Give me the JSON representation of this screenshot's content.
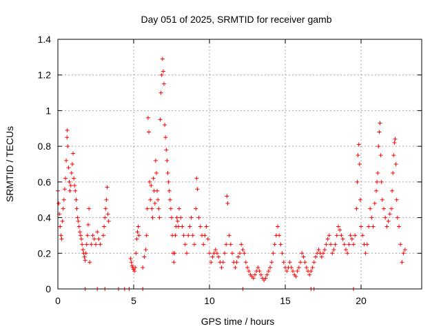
{
  "chart_data": {
    "type": "scatter",
    "title": "Day 051 of 2025, SRMTID for receiver gamb",
    "xlabel": "GPS time / hours",
    "ylabel": "SRMTID / TECUs",
    "xlim": [
      0,
      24
    ],
    "ylim": [
      0,
      1.4
    ],
    "xticks": [
      0,
      5,
      10,
      15,
      20
    ],
    "yticks": [
      0,
      0.2,
      0.4,
      0.6,
      0.8,
      1,
      1.2,
      1.4
    ],
    "xtick_labels": [
      "0",
      "5",
      "10",
      "15",
      "20"
    ],
    "ytick_labels": [
      "0",
      "0.2",
      "0.4",
      "0.6",
      "0.8",
      "1",
      "1.2",
      "1.4"
    ],
    "grid": true,
    "marker": "plus",
    "series": [
      {
        "name": "SRMTID",
        "color": "#ff0000",
        "points": [
          [
            0.0,
            0.55
          ],
          [
            0.05,
            0.48
          ],
          [
            0.1,
            0.42
          ],
          [
            0.15,
            0.35
          ],
          [
            0.2,
            0.3
          ],
          [
            0.25,
            0.28
          ],
          [
            0.3,
            0.38
          ],
          [
            0.35,
            0.45
          ],
          [
            0.4,
            0.5
          ],
          [
            0.45,
            0.56
          ],
          [
            0.5,
            0.62
          ],
          [
            0.55,
            0.72
          ],
          [
            0.6,
            0.85
          ],
          [
            0.62,
            0.89
          ],
          [
            0.65,
            0.8
          ],
          [
            0.7,
            0.68
          ],
          [
            0.75,
            0.6
          ],
          [
            0.8,
            0.55
          ],
          [
            0.85,
            0.58
          ],
          [
            0.9,
            0.65
          ],
          [
            0.95,
            0.7
          ],
          [
            1.0,
            0.76
          ],
          [
            1.05,
            0.62
          ],
          [
            1.1,
            0.58
          ],
          [
            1.15,
            0.55
          ],
          [
            1.2,
            0.5
          ],
          [
            1.25,
            0.45
          ],
          [
            1.3,
            0.4
          ],
          [
            1.35,
            0.38
          ],
          [
            1.4,
            0.35
          ],
          [
            1.45,
            0.32
          ],
          [
            1.5,
            0.3
          ],
          [
            1.55,
            0.28
          ],
          [
            1.6,
            0.25
          ],
          [
            1.65,
            0.22
          ],
          [
            1.7,
            0.2
          ],
          [
            1.75,
            0.18
          ],
          [
            1.8,
            0.16
          ],
          [
            1.85,
            0.2
          ],
          [
            1.9,
            0.25
          ],
          [
            1.95,
            0.3
          ],
          [
            2.0,
            0.36
          ],
          [
            2.05,
            0.45
          ],
          [
            2.1,
            0.15
          ],
          [
            2.2,
            0.25
          ],
          [
            2.3,
            0.3
          ],
          [
            2.4,
            0.28
          ],
          [
            2.5,
            0.25
          ],
          [
            2.6,
            0.32
          ],
          [
            2.7,
            0.28
          ],
          [
            2.8,
            0.25
          ],
          [
            3.0,
            0.3
          ],
          [
            3.05,
            0.35
          ],
          [
            3.1,
            0.4
          ],
          [
            3.15,
            0.45
          ],
          [
            3.2,
            0.5
          ],
          [
            3.25,
            0.57
          ],
          [
            3.3,
            0.42
          ],
          [
            3.35,
            0.38
          ],
          [
            4.8,
            0.17
          ],
          [
            4.85,
            0.15
          ],
          [
            4.9,
            0.13
          ],
          [
            4.95,
            0.12
          ],
          [
            5.0,
            0.11
          ],
          [
            5.05,
            0.1
          ],
          [
            5.1,
            0.12
          ],
          [
            5.15,
            0.2
          ],
          [
            5.2,
            0.28
          ],
          [
            5.25,
            0.32
          ],
          [
            5.3,
            0.35
          ],
          [
            5.35,
            0.3
          ],
          [
            5.6,
            0.12
          ],
          [
            5.7,
            0.18
          ],
          [
            5.8,
            0.22
          ],
          [
            5.85,
            0.3
          ],
          [
            5.9,
            0.45
          ],
          [
            5.95,
            0.96
          ],
          [
            6.0,
            0.88
          ],
          [
            6.05,
            0.6
          ],
          [
            6.1,
            0.5
          ],
          [
            6.15,
            0.58
          ],
          [
            6.2,
            0.45
          ],
          [
            6.25,
            0.4
          ],
          [
            6.3,
            0.62
          ],
          [
            6.35,
            0.55
          ],
          [
            6.4,
            0.48
          ],
          [
            6.45,
            0.72
          ],
          [
            6.5,
            0.65
          ],
          [
            6.55,
            0.55
          ],
          [
            6.6,
            0.5
          ],
          [
            6.65,
            0.45
          ],
          [
            6.7,
            0.4
          ],
          [
            6.75,
            0.95
          ],
          [
            6.8,
            1.1
          ],
          [
            6.85,
            1.2
          ],
          [
            6.9,
            1.29
          ],
          [
            6.95,
            1.22
          ],
          [
            7.0,
            1.15
          ],
          [
            7.05,
            0.92
          ],
          [
            7.1,
            0.85
          ],
          [
            7.15,
            0.78
          ],
          [
            7.2,
            0.72
          ],
          [
            7.25,
            0.65
          ],
          [
            7.3,
            0.6
          ],
          [
            7.35,
            0.55
          ],
          [
            7.4,
            0.5
          ],
          [
            7.45,
            0.45
          ],
          [
            7.5,
            0.4
          ],
          [
            7.55,
            0.3
          ],
          [
            7.6,
            0.2
          ],
          [
            7.65,
            0.15
          ],
          [
            7.7,
            0.2
          ],
          [
            7.75,
            0.3
          ],
          [
            7.8,
            0.35
          ],
          [
            7.85,
            0.4
          ],
          [
            7.9,
            0.38
          ],
          [
            7.95,
            0.35
          ],
          [
            8.0,
            0.45
          ],
          [
            8.1,
            0.4
          ],
          [
            8.2,
            0.35
          ],
          [
            8.3,
            0.3
          ],
          [
            8.4,
            0.25
          ],
          [
            8.5,
            0.2
          ],
          [
            8.6,
            0.3
          ],
          [
            8.7,
            0.35
          ],
          [
            8.8,
            0.4
          ],
          [
            8.9,
            0.3
          ],
          [
            9.0,
            0.25
          ],
          [
            9.1,
            0.45
          ],
          [
            9.15,
            0.62
          ],
          [
            9.2,
            0.56
          ],
          [
            9.3,
            0.4
          ],
          [
            9.4,
            0.35
          ],
          [
            9.5,
            0.3
          ],
          [
            9.6,
            0.25
          ],
          [
            9.7,
            0.3
          ],
          [
            9.8,
            0.35
          ],
          [
            9.9,
            0.28
          ],
          [
            10.0,
            0.2
          ],
          [
            10.1,
            0.15
          ],
          [
            10.2,
            0.18
          ],
          [
            10.3,
            0.2
          ],
          [
            10.4,
            0.22
          ],
          [
            10.5,
            0.2
          ],
          [
            10.6,
            0.18
          ],
          [
            10.7,
            0.15
          ],
          [
            10.8,
            0.12
          ],
          [
            10.9,
            0.15
          ],
          [
            11.0,
            0.2
          ],
          [
            11.1,
            0.25
          ],
          [
            11.15,
            0.52
          ],
          [
            11.2,
            0.48
          ],
          [
            11.3,
            0.3
          ],
          [
            11.4,
            0.25
          ],
          [
            11.5,
            0.2
          ],
          [
            11.6,
            0.15
          ],
          [
            11.7,
            0.12
          ],
          [
            11.8,
            0.15
          ],
          [
            11.9,
            0.18
          ],
          [
            12.0,
            0.2
          ],
          [
            12.1,
            0.25
          ],
          [
            12.2,
            0.22
          ],
          [
            12.3,
            0.2
          ],
          [
            12.4,
            0.15
          ],
          [
            12.5,
            0.12
          ],
          [
            12.6,
            0.1
          ],
          [
            12.7,
            0.08
          ],
          [
            12.8,
            0.07
          ],
          [
            12.9,
            0.06
          ],
          [
            13.0,
            0.08
          ],
          [
            13.1,
            0.1
          ],
          [
            13.2,
            0.12
          ],
          [
            13.3,
            0.1
          ],
          [
            13.4,
            0.08
          ],
          [
            13.5,
            0.06
          ],
          [
            13.6,
            0.05
          ],
          [
            13.7,
            0.06
          ],
          [
            13.8,
            0.08
          ],
          [
            13.9,
            0.1
          ],
          [
            14.0,
            0.12
          ],
          [
            14.1,
            0.15
          ],
          [
            14.2,
            0.2
          ],
          [
            14.3,
            0.25
          ],
          [
            14.4,
            0.3
          ],
          [
            14.5,
            0.35
          ],
          [
            14.6,
            0.3
          ],
          [
            14.7,
            0.25
          ],
          [
            14.8,
            0.2
          ],
          [
            14.9,
            0.15
          ],
          [
            15.0,
            0.12
          ],
          [
            15.1,
            0.1
          ],
          [
            15.2,
            0.12
          ],
          [
            15.3,
            0.15
          ],
          [
            15.4,
            0.12
          ],
          [
            15.5,
            0.1
          ],
          [
            15.6,
            0.08
          ],
          [
            15.7,
            0.07
          ],
          [
            15.8,
            0.1
          ],
          [
            15.9,
            0.12
          ],
          [
            16.0,
            0.15
          ],
          [
            16.1,
            0.2
          ],
          [
            16.2,
            0.18
          ],
          [
            16.3,
            0.15
          ],
          [
            16.4,
            0.12
          ],
          [
            16.5,
            0.1
          ],
          [
            16.6,
            0.08
          ],
          [
            16.7,
            0.1
          ],
          [
            16.8,
            0.12
          ],
          [
            16.9,
            0.15
          ],
          [
            17.0,
            0.18
          ],
          [
            17.1,
            0.2
          ],
          [
            17.2,
            0.22
          ],
          [
            17.3,
            0.2
          ],
          [
            17.4,
            0.18
          ],
          [
            17.5,
            0.2
          ],
          [
            17.6,
            0.22
          ],
          [
            17.7,
            0.25
          ],
          [
            17.8,
            0.28
          ],
          [
            17.9,
            0.3
          ],
          [
            18.0,
            0.25
          ],
          [
            18.1,
            0.2
          ],
          [
            18.2,
            0.22
          ],
          [
            18.3,
            0.25
          ],
          [
            18.4,
            0.3
          ],
          [
            18.5,
            0.35
          ],
          [
            18.6,
            0.33
          ],
          [
            18.7,
            0.3
          ],
          [
            18.8,
            0.28
          ],
          [
            18.9,
            0.25
          ],
          [
            19.0,
            0.22
          ],
          [
            19.1,
            0.2
          ],
          [
            19.2,
            0.25
          ],
          [
            19.3,
            0.3
          ],
          [
            19.4,
            0.28
          ],
          [
            19.5,
            0.25
          ],
          [
            19.6,
            0.3
          ],
          [
            19.7,
            0.45
          ],
          [
            19.75,
            0.6
          ],
          [
            19.8,
            0.75
          ],
          [
            19.85,
            0.81
          ],
          [
            19.9,
            0.7
          ],
          [
            19.95,
            0.5
          ],
          [
            20.0,
            0.35
          ],
          [
            20.1,
            0.3
          ],
          [
            20.2,
            0.25
          ],
          [
            20.3,
            0.2
          ],
          [
            20.4,
            0.25
          ],
          [
            20.5,
            0.35
          ],
          [
            20.6,
            0.45
          ],
          [
            20.7,
            0.4
          ],
          [
            20.8,
            0.35
          ],
          [
            20.9,
            0.48
          ],
          [
            21.0,
            0.55
          ],
          [
            21.05,
            0.6
          ],
          [
            21.1,
            0.65
          ],
          [
            21.15,
            0.8
          ],
          [
            21.2,
            0.88
          ],
          [
            21.25,
            0.93
          ],
          [
            21.3,
            0.75
          ],
          [
            21.35,
            0.6
          ],
          [
            21.4,
            0.5
          ],
          [
            21.5,
            0.45
          ],
          [
            21.6,
            0.4
          ],
          [
            21.7,
            0.35
          ],
          [
            21.8,
            0.38
          ],
          [
            21.9,
            0.42
          ],
          [
            22.0,
            0.45
          ],
          [
            22.05,
            0.55
          ],
          [
            22.1,
            0.65
          ],
          [
            22.15,
            0.75
          ],
          [
            22.2,
            0.82
          ],
          [
            22.25,
            0.84
          ],
          [
            22.3,
            0.7
          ],
          [
            22.35,
            0.5
          ],
          [
            22.4,
            0.4
          ],
          [
            22.5,
            0.35
          ],
          [
            22.6,
            0.25
          ],
          [
            22.7,
            0.15
          ],
          [
            22.8,
            0.2
          ],
          [
            22.9,
            0.22
          ]
        ]
      }
    ],
    "zero_markers_x": [
      1.8,
      2.6,
      3.1,
      4.0,
      4.4,
      4.7,
      5.6,
      12.2,
      16.7,
      16.9,
      19.5
    ]
  }
}
